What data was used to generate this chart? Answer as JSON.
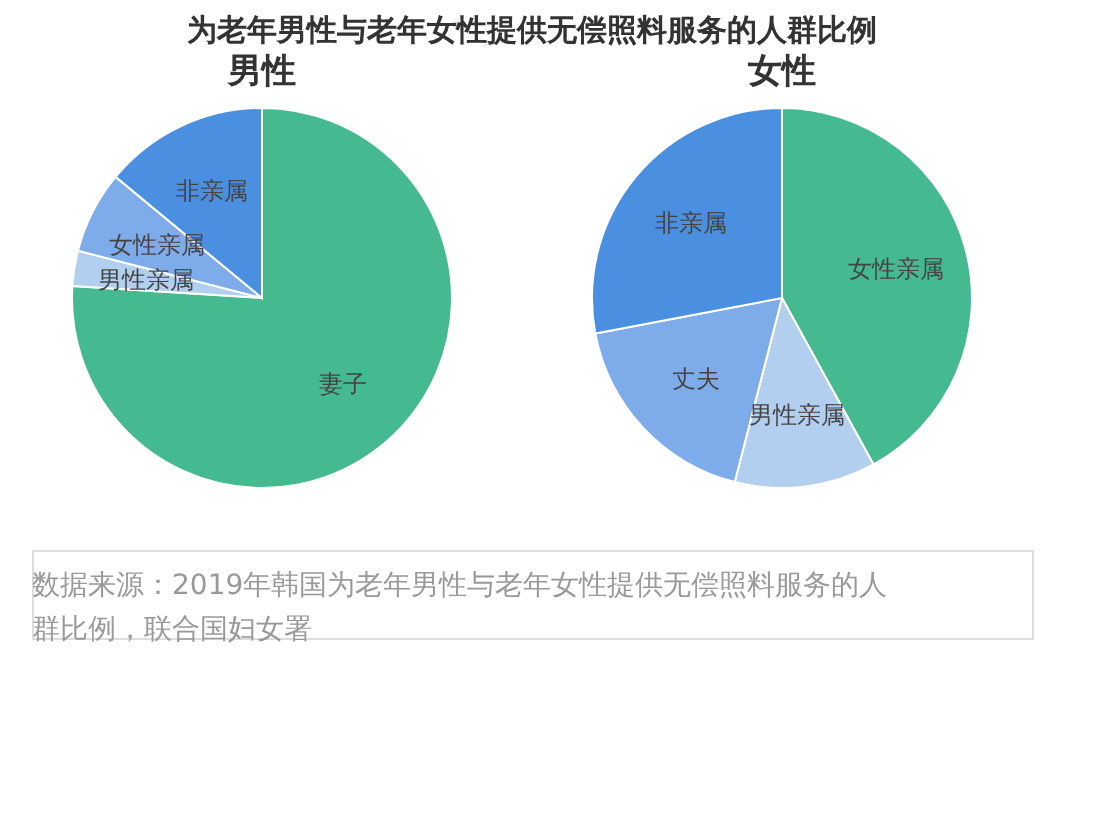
{
  "chart_data": [
    {
      "type": "pie",
      "title": "男性",
      "categories": [
        "妻子",
        "男性亲属",
        "女性亲属",
        "非亲属"
      ],
      "values": [
        76,
        3,
        7,
        14
      ],
      "colors": [
        "#45b98f",
        "#b3cff0",
        "#7eaceb",
        "#4a8fe0"
      ]
    },
    {
      "type": "pie",
      "title": "女性",
      "categories": [
        "女性亲属",
        "男性亲属",
        "丈夫",
        "非亲属"
      ],
      "values": [
        42,
        12,
        18,
        28
      ],
      "colors": [
        "#45b98f",
        "#a9c8ee",
        "#7aabea",
        "#4a8fe0"
      ]
    },
    {
      "type": "other",
      "title": "为老年男性与老年女性提供无偿照料服务的人群比例",
      "annotations": [
        "数据来源：2019年韩国为老年男性与老年女性提供无偿照料服务的人群比例，联合国妇女署"
      ]
    }
  ]
}
